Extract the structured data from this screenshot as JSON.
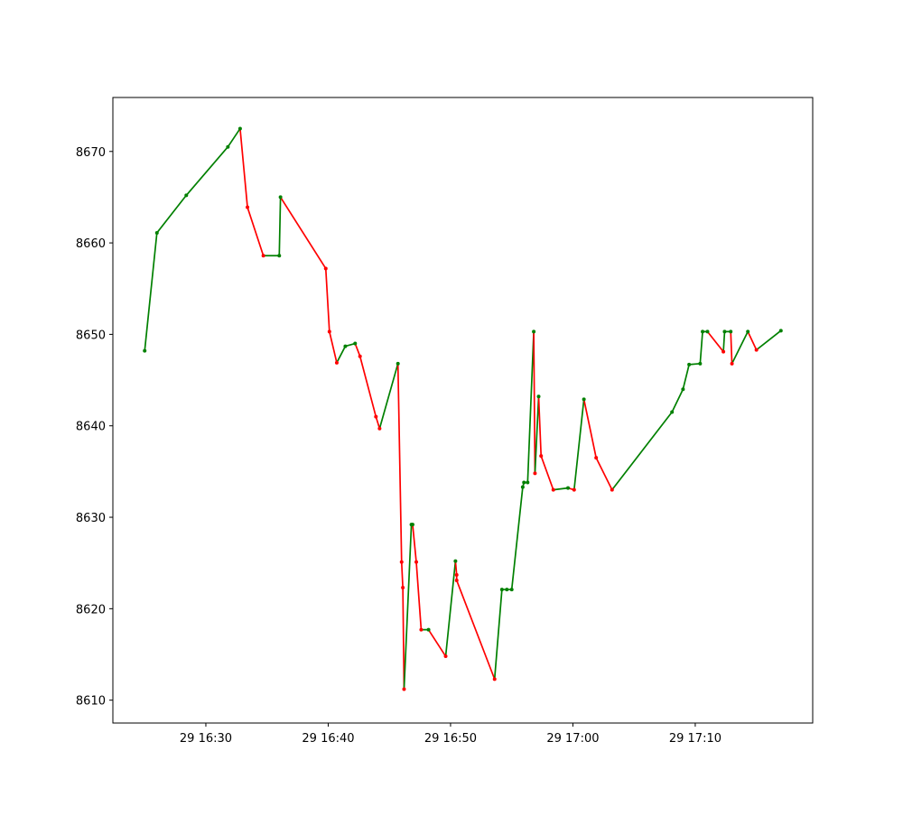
{
  "chart_data": {
    "type": "line",
    "title": "",
    "xlabel": "",
    "ylabel": "",
    "x_unit": "minutes from 16:00 on day 29",
    "xlim": [
      22.4,
      79.6
    ],
    "ylim": [
      8607.5,
      8675.9
    ],
    "x_ticks": [
      {
        "value": 30,
        "label": "29 16:30"
      },
      {
        "value": 40,
        "label": "29 16:40"
      },
      {
        "value": 50,
        "label": "29 16:50"
      },
      {
        "value": 60,
        "label": "29 17:00"
      },
      {
        "value": 70,
        "label": "29 17:10"
      }
    ],
    "y_ticks": [
      {
        "value": 8610,
        "label": "8610"
      },
      {
        "value": 8620,
        "label": "8620"
      },
      {
        "value": 8630,
        "label": "8630"
      },
      {
        "value": 8640,
        "label": "8640"
      },
      {
        "value": 8650,
        "label": "8650"
      },
      {
        "value": 8660,
        "label": "8660"
      },
      {
        "value": 8670,
        "label": "8670"
      }
    ],
    "colors": {
      "up": "#008000",
      "down": "#ff0000"
    },
    "points": [
      [
        25.0,
        8648.2
      ],
      [
        26.0,
        8661.1
      ],
      [
        28.4,
        8665.2
      ],
      [
        31.8,
        8670.5
      ],
      [
        32.8,
        8672.5
      ],
      [
        33.4,
        8663.9
      ],
      [
        34.7,
        8658.6
      ],
      [
        36.0,
        8658.6
      ],
      [
        36.1,
        8665.0
      ],
      [
        39.8,
        8657.2
      ],
      [
        40.1,
        8650.3
      ],
      [
        40.7,
        8646.9
      ],
      [
        41.4,
        8648.7
      ],
      [
        42.2,
        8649.0
      ],
      [
        42.6,
        8647.6
      ],
      [
        43.9,
        8641.0
      ],
      [
        44.2,
        8639.7
      ],
      [
        45.7,
        8646.8
      ],
      [
        46.0,
        8625.1
      ],
      [
        46.1,
        8622.3
      ],
      [
        46.2,
        8611.2
      ],
      [
        46.8,
        8629.2
      ],
      [
        46.9,
        8629.2
      ],
      [
        47.2,
        8625.1
      ],
      [
        47.6,
        8617.7
      ],
      [
        48.2,
        8617.7
      ],
      [
        49.6,
        8614.8
      ],
      [
        50.4,
        8625.2
      ],
      [
        50.5,
        8623.7
      ],
      [
        50.5,
        8623.1
      ],
      [
        53.6,
        8612.3
      ],
      [
        54.2,
        8622.1
      ],
      [
        54.6,
        8622.1
      ],
      [
        55.0,
        8622.1
      ],
      [
        55.9,
        8633.3
      ],
      [
        56.0,
        8633.8
      ],
      [
        56.3,
        8633.8
      ],
      [
        56.8,
        8650.3
      ],
      [
        56.9,
        8634.8
      ],
      [
        57.2,
        8643.2
      ],
      [
        57.4,
        8636.7
      ],
      [
        58.4,
        8633.0
      ],
      [
        59.6,
        8633.2
      ],
      [
        60.1,
        8633.0
      ],
      [
        60.9,
        8642.9
      ],
      [
        61.9,
        8636.5
      ],
      [
        63.2,
        8633.0
      ],
      [
        68.1,
        8641.5
      ],
      [
        69.0,
        8644.0
      ],
      [
        69.5,
        8646.7
      ],
      [
        70.4,
        8646.8
      ],
      [
        70.6,
        8650.3
      ],
      [
        71.0,
        8650.3
      ],
      [
        72.3,
        8648.1
      ],
      [
        72.4,
        8650.3
      ],
      [
        72.9,
        8650.3
      ],
      [
        73.0,
        8646.8
      ],
      [
        74.3,
        8650.3
      ],
      [
        75.0,
        8648.3
      ],
      [
        77.0,
        8650.4
      ]
    ]
  }
}
